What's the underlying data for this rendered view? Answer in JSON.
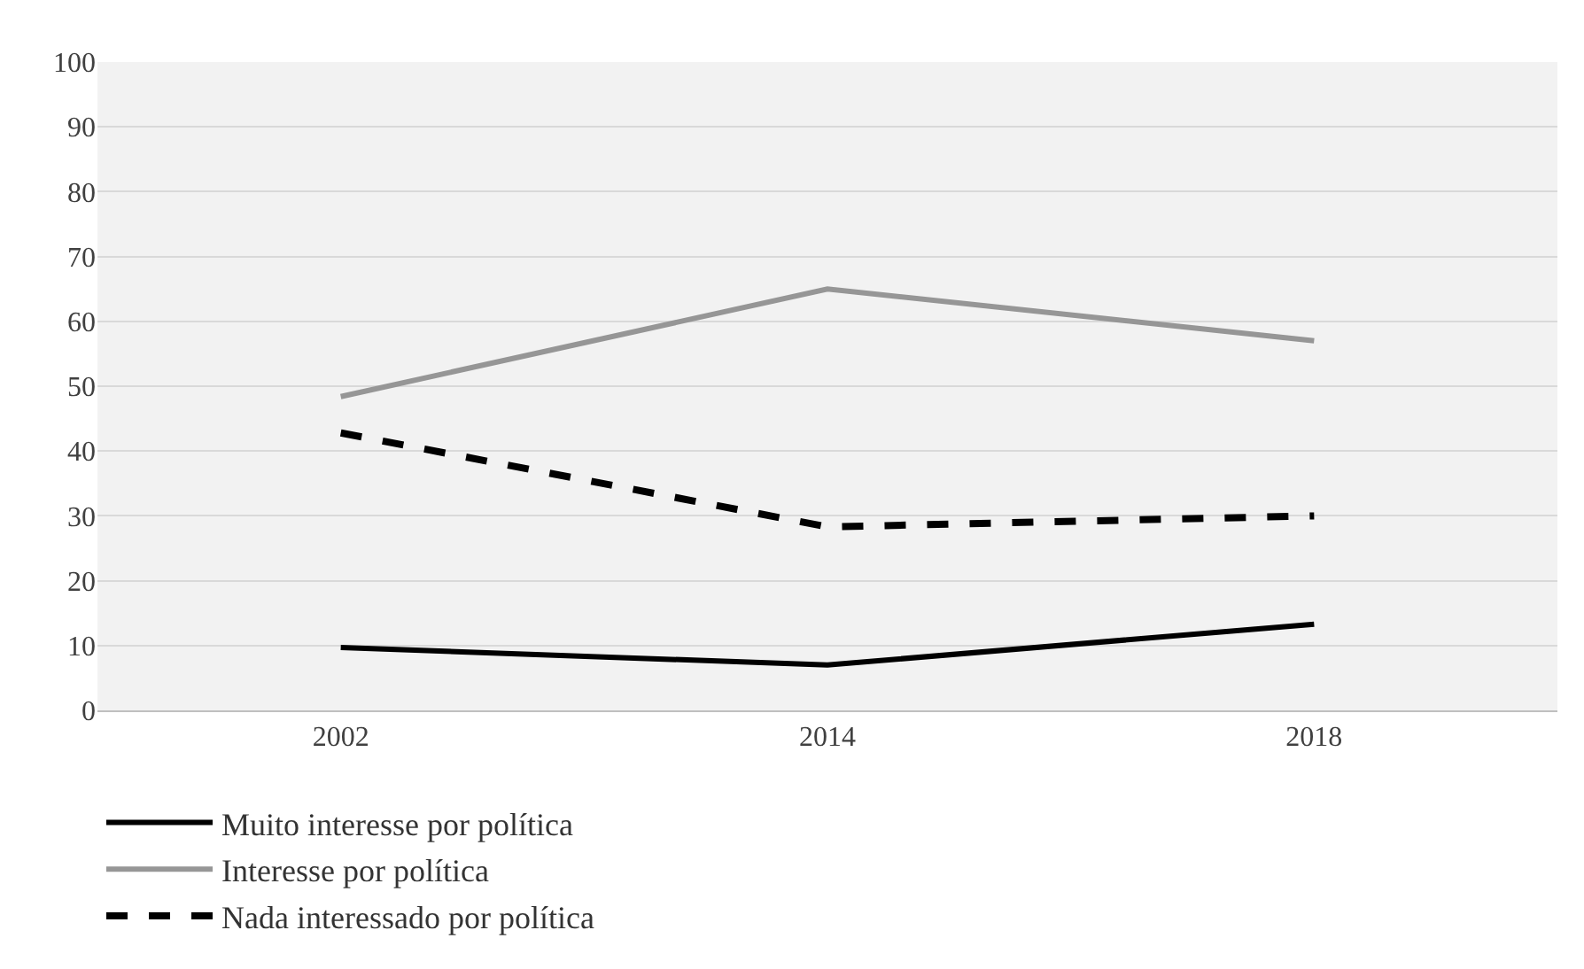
{
  "chart_data": {
    "type": "line",
    "categories": [
      "2002",
      "2014",
      "2018"
    ],
    "series": [
      {
        "name": "Muito interesse por política",
        "color": "#000000",
        "values": [
          9.7,
          7,
          13.3
        ],
        "line_style": "solid"
      },
      {
        "name": "Interesse por política",
        "color": "#969696",
        "values": [
          48.4,
          65,
          57
        ],
        "line_style": "solid"
      },
      {
        "name": "Nada interessado por política",
        "color": "#000000",
        "values": [
          42.8,
          28.3,
          30
        ],
        "line_style": "dashed"
      }
    ],
    "ylim": [
      0,
      100
    ],
    "yticks": [
      0,
      10,
      20,
      30,
      40,
      50,
      60,
      70,
      80,
      90,
      100
    ],
    "grid": "y",
    "legend": "bottom",
    "marker": "none"
  }
}
